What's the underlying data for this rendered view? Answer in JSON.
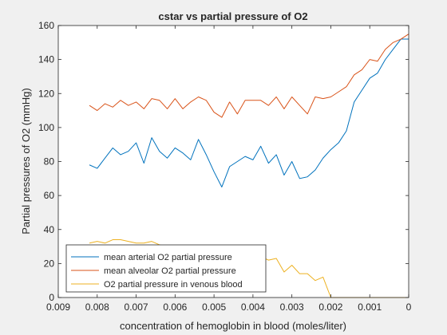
{
  "window": {
    "background": "#f0f0f0"
  },
  "chart_data": {
    "type": "line",
    "title": "cstar vs partial pressure of O2",
    "xlabel": "concentration of hemoglobin in blood (moles/liter)",
    "ylabel": "Partial pressures of O2 (mmHg)",
    "xlim": [
      0.009,
      0
    ],
    "x_reversed": true,
    "ylim": [
      0,
      160
    ],
    "xticks": [
      0.009,
      0.008,
      0.007,
      0.006,
      0.005,
      0.004,
      0.003,
      0.002,
      0.001,
      0
    ],
    "xtick_labels": [
      "0.009",
      "0.008",
      "0.007",
      "0.006",
      "0.005",
      "0.004",
      "0.003",
      "0.002",
      "0.001",
      "0"
    ],
    "yticks": [
      0,
      20,
      40,
      60,
      80,
      100,
      120,
      140,
      160
    ],
    "ytick_labels": [
      "0",
      "20",
      "40",
      "60",
      "80",
      "100",
      "120",
      "140",
      "160"
    ],
    "grid": false,
    "legend_position": "bottom-left",
    "x": [
      0.0082,
      0.008,
      0.0078,
      0.0076,
      0.0074,
      0.0072,
      0.007,
      0.0068,
      0.0066,
      0.0064,
      0.0062,
      0.006,
      0.0058,
      0.0056,
      0.0054,
      0.0052,
      0.005,
      0.0048,
      0.0046,
      0.0044,
      0.0042,
      0.004,
      0.0038,
      0.0036,
      0.0034,
      0.0032,
      0.003,
      0.0028,
      0.0026,
      0.0024,
      0.0022,
      0.002,
      0.0018,
      0.0016,
      0.0014,
      0.0012,
      0.001,
      0.0008,
      0.0006,
      0.0004,
      0.0002,
      0.0
    ],
    "series": [
      {
        "name": "mean arterial O2 partial pressure",
        "color": "#0072bd",
        "values": [
          78,
          76,
          82,
          88,
          84,
          86,
          91,
          79,
          94,
          86,
          82,
          88,
          85,
          81,
          93,
          84,
          74,
          65,
          77,
          80,
          83,
          81,
          89,
          79,
          84,
          72,
          80,
          70,
          71,
          75,
          82,
          87,
          91,
          98,
          115,
          122,
          129,
          132,
          140,
          146,
          152,
          152
        ]
      },
      {
        "name": "mean alveolar O2 partial pressure",
        "color": "#d95319",
        "values": [
          113,
          110,
          114,
          112,
          116,
          113,
          115,
          111,
          117,
          116,
          111,
          117,
          111,
          115,
          118,
          116,
          109,
          106,
          115,
          108,
          116,
          116,
          116,
          113,
          118,
          111,
          118,
          113,
          108,
          118,
          117,
          118,
          121,
          124,
          131,
          134,
          140,
          139,
          146,
          150,
          152,
          155
        ]
      },
      {
        "name": "O2 partial pressure in venous blood",
        "color": "#edb120",
        "values": [
          32,
          33,
          32,
          34,
          34,
          33,
          32,
          32,
          33,
          31,
          30,
          30,
          29,
          29,
          30,
          29,
          27,
          26,
          27,
          27,
          26,
          25,
          24,
          22,
          23,
          15,
          19,
          14,
          14,
          10,
          12,
          0,
          0,
          0,
          0,
          0,
          0,
          0,
          0,
          0,
          0,
          0
        ]
      }
    ]
  }
}
